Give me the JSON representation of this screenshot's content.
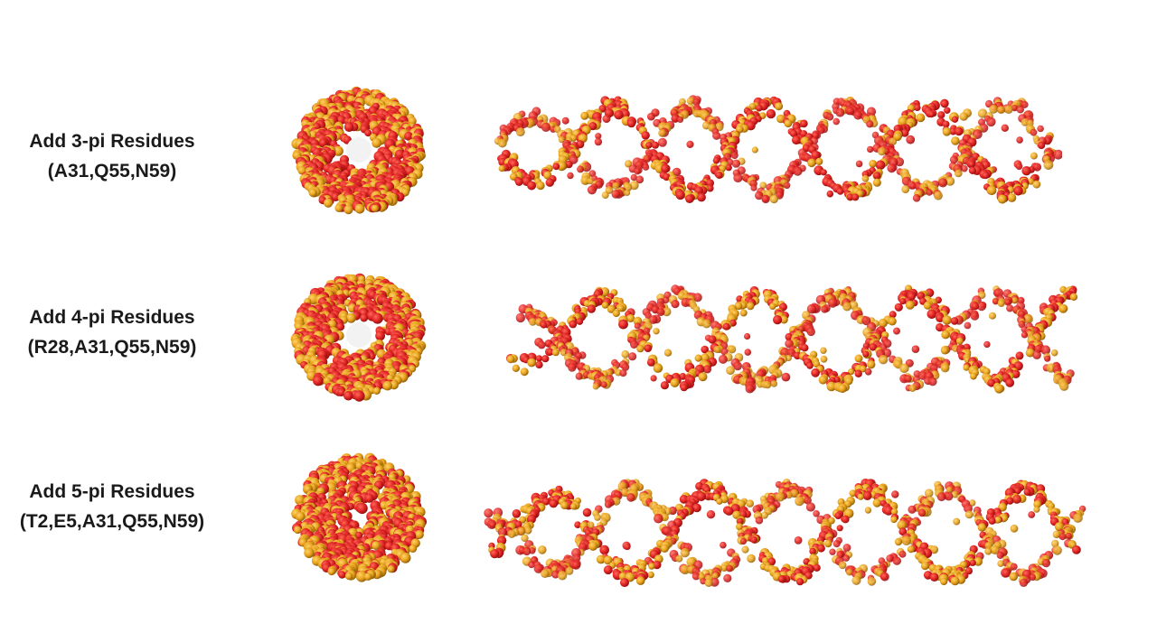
{
  "rows": [
    {
      "title": "Add 3-pi Residues",
      "residues": "(A31,Q55,N59)",
      "hole": "open"
    },
    {
      "title": "Add 4-pi Residues",
      "residues": "(R28,A31,Q55,N59)",
      "hole": "open"
    },
    {
      "title": "Add 5-pi Residues",
      "residues": "(T2,E5,A31,Q55,N59)",
      "hole": "closed"
    }
  ],
  "colors": {
    "backbone_residue": "#e02424",
    "pi_residue": "#e8a21c",
    "background": "#ffffff"
  }
}
